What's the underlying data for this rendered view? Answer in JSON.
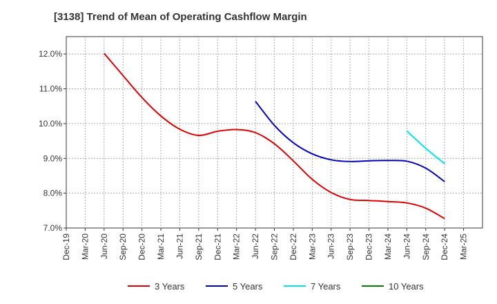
{
  "title": "[3138]  Trend of Mean of Operating Cashflow Margin",
  "chart_data": {
    "type": "line",
    "title": "[3138]  Trend of Mean of Operating Cashflow Margin",
    "xlabel": "",
    "ylabel": "",
    "x_ticks": [
      "Dec-19",
      "Mar-20",
      "Jun-20",
      "Sep-20",
      "Dec-20",
      "Mar-21",
      "Jun-21",
      "Sep-21",
      "Dec-21",
      "Mar-22",
      "Jun-22",
      "Sep-22",
      "Dec-22",
      "Mar-23",
      "Jun-23",
      "Sep-23",
      "Dec-23",
      "Mar-24",
      "Jun-24",
      "Sep-24",
      "Dec-24",
      "Mar-25"
    ],
    "y_ticks": [
      "7.0%",
      "8.0%",
      "9.0%",
      "10.0%",
      "11.0%",
      "12.0%"
    ],
    "ylim": [
      7.0,
      12.5
    ],
    "grid": true,
    "legend_position": "bottom",
    "series": [
      {
        "name": "3 Years",
        "color": "#e00000",
        "x": [
          "Jun-20",
          "Sep-20",
          "Dec-20",
          "Mar-21",
          "Jun-21",
          "Sep-21",
          "Dec-21",
          "Mar-22",
          "Jun-22",
          "Sep-22",
          "Dec-22",
          "Mar-23",
          "Jun-23",
          "Sep-23",
          "Dec-23",
          "Mar-24",
          "Jun-24",
          "Sep-24",
          "Dec-24"
        ],
        "values": [
          12.02,
          11.38,
          10.75,
          10.22,
          9.84,
          9.66,
          9.78,
          9.83,
          9.74,
          9.42,
          8.93,
          8.4,
          8.02,
          7.82,
          7.79,
          7.76,
          7.72,
          7.57,
          7.27
        ]
      },
      {
        "name": "5 Years",
        "color": "#0000c0",
        "x": [
          "Jun-22",
          "Sep-22",
          "Dec-22",
          "Mar-23",
          "Jun-23",
          "Sep-23",
          "Dec-23",
          "Mar-24",
          "Jun-24",
          "Sep-24",
          "Dec-24"
        ],
        "values": [
          10.64,
          9.95,
          9.45,
          9.13,
          8.96,
          8.91,
          8.93,
          8.94,
          8.92,
          8.72,
          8.33
        ]
      },
      {
        "name": "7 Years",
        "color": "#00e5ee",
        "x": [
          "Jun-24",
          "Sep-24",
          "Dec-24"
        ],
        "values": [
          9.79,
          9.29,
          8.85
        ]
      },
      {
        "name": "10 Years",
        "color": "#008000",
        "x": [],
        "values": []
      }
    ]
  }
}
